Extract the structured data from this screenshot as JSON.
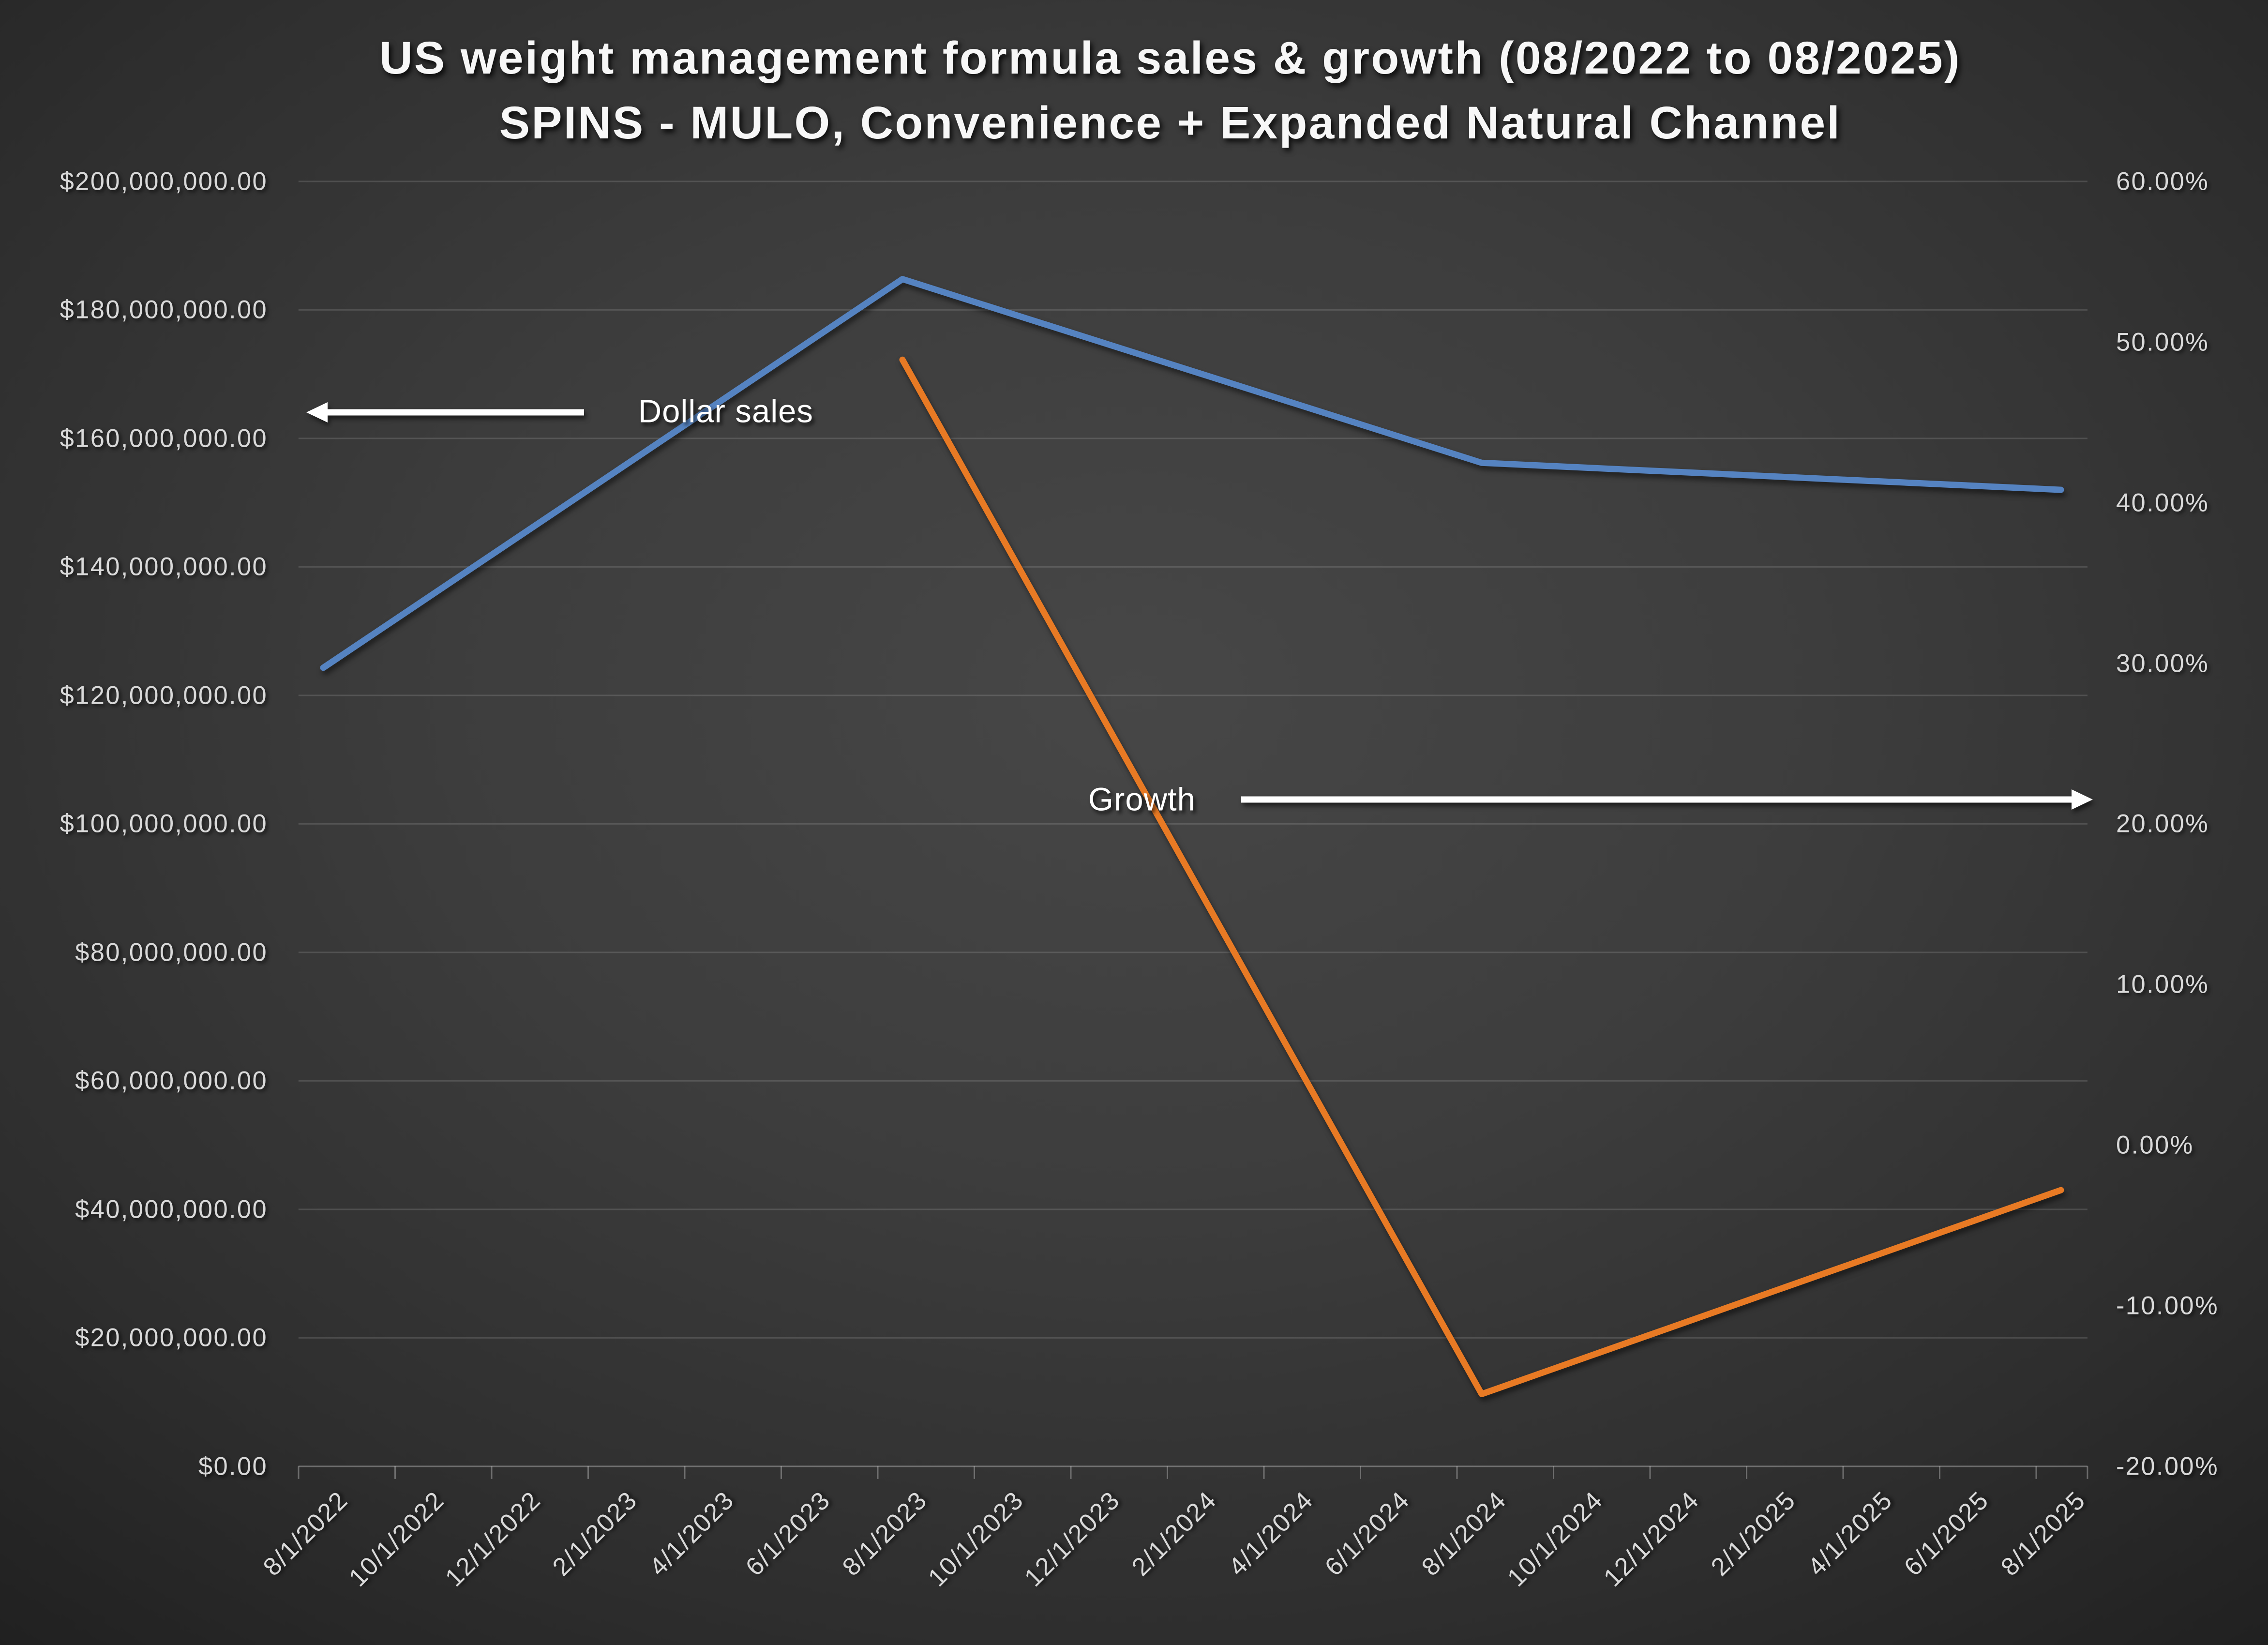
{
  "title": {
    "line1": "US weight management formula sales & growth (08/2022 to 08/2025)",
    "line2": "SPINS - MULO, Convenience + Expanded Natural Channel"
  },
  "annotations": {
    "dollar_sales_label": "Dollar sales",
    "growth_label": "Growth"
  },
  "chart_data": {
    "type": "line",
    "title": "US weight management formula sales & growth (08/2022 to 08/2025)",
    "subtitle": "SPINS - MULO, Convenience + Expanded Natural Channel",
    "grid": "horizontal",
    "legend_position": "none",
    "categories": [
      "8/1/2022",
      "10/1/2022",
      "12/1/2022",
      "2/1/2023",
      "4/1/2023",
      "6/1/2023",
      "8/1/2023",
      "10/1/2023",
      "12/1/2023",
      "2/1/2024",
      "4/1/2024",
      "6/1/2024",
      "8/1/2024",
      "10/1/2024",
      "12/1/2024",
      "2/1/2025",
      "4/1/2025",
      "6/1/2025",
      "8/1/2025"
    ],
    "left_axis": {
      "min": 0,
      "max": 200000000,
      "step": 20000000,
      "format": "$#,##0.00",
      "tick_labels": [
        "$200,000,000.00",
        "$180,000,000.00",
        "$160,000,000.00",
        "$140,000,000.00",
        "$120,000,000.00",
        "$100,000,000.00",
        "$80,000,000.00",
        "$60,000,000.00",
        "$40,000,000.00",
        "$20,000,000.00",
        "$0.00"
      ]
    },
    "right_axis": {
      "min": -20,
      "max": 60,
      "step": 10,
      "format": "0.00%",
      "tick_labels": [
        "60.00%",
        "50.00%",
        "40.00%",
        "30.00%",
        "20.00%",
        "10.00%",
        "0.00%",
        "-10.00%",
        "-20.00%"
      ]
    },
    "series": [
      {
        "name": "Dollar sales",
        "axis": "left",
        "color": "#5583C1",
        "points": [
          [
            "8/1/2022",
            124300000
          ],
          [
            "8/1/2023",
            184800000
          ],
          [
            "8/1/2024",
            156200000
          ],
          [
            "8/1/2025",
            152000000
          ]
        ]
      },
      {
        "name": "Growth",
        "axis": "right",
        "unit": "%",
        "color": "#E87A24",
        "points": [
          [
            "8/1/2023",
            48.9
          ],
          [
            "8/1/2024",
            -15.5
          ],
          [
            "8/1/2025",
            -2.8
          ]
        ]
      }
    ]
  },
  "colors": {
    "background_center": "#474747",
    "background_edge": "#1e1e1e",
    "series_blue": "#5583C1",
    "series_orange": "#E87A24",
    "gridline": "#6b6b6b",
    "axis_line": "#7a7a7a",
    "axis_label": "#d9d9d9",
    "title_text": "#f7f7f7",
    "annotation_arrow": "#ffffff",
    "annotation_text": "#ffffff"
  }
}
